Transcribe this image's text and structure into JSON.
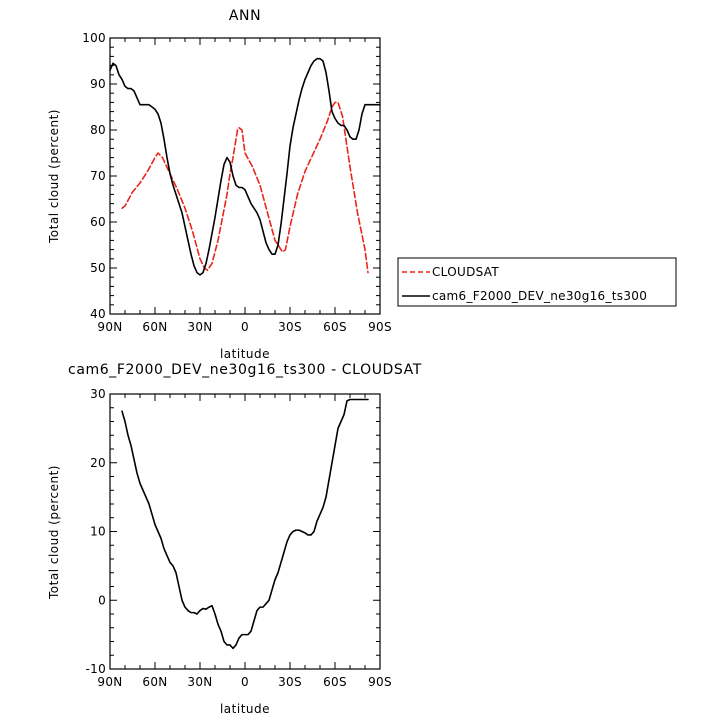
{
  "chart_data": [
    {
      "type": "line",
      "title": "ANN",
      "xlabel": "latitude",
      "ylabel": "Total cloud (percent)",
      "xlim": [
        90,
        -90
      ],
      "ylim": [
        40,
        100
      ],
      "x_ticks": [
        {
          "value": 90,
          "label": "90N"
        },
        {
          "value": 60,
          "label": "60N"
        },
        {
          "value": 30,
          "label": "30N"
        },
        {
          "value": 0,
          "label": "0"
        },
        {
          "value": -30,
          "label": "30S"
        },
        {
          "value": -60,
          "label": "60S"
        },
        {
          "value": -90,
          "label": "90S"
        }
      ],
      "y_ticks": [
        40,
        50,
        60,
        70,
        80,
        90,
        100
      ],
      "legend": {
        "placement": "right-outside"
      },
      "series": [
        {
          "name": "CLOUDSAT",
          "color": "#e8261c",
          "dash": "dashed",
          "x": [
            82,
            80,
            75,
            70,
            65,
            60,
            58,
            55,
            50,
            45,
            40,
            35,
            30,
            27,
            25,
            22,
            18,
            15,
            12,
            10,
            8,
            6,
            5,
            4,
            2,
            0,
            -5,
            -10,
            -15,
            -20,
            -25,
            -27,
            -30,
            -35,
            -40,
            -45,
            -50,
            -55,
            -58,
            -60,
            -62,
            -65,
            -70,
            -75,
            -80,
            -82
          ],
          "y": [
            63,
            63.5,
            66.5,
            68.5,
            71,
            74,
            75,
            74,
            70.5,
            67,
            63,
            58,
            52,
            50,
            49.5,
            51,
            56,
            61,
            66,
            70.5,
            74,
            78,
            80,
            80.5,
            80,
            75,
            72,
            68,
            62,
            56,
            53.5,
            54,
            59,
            66,
            71,
            74.5,
            78,
            82,
            85,
            86,
            86,
            83,
            72,
            62,
            54,
            49
          ]
        },
        {
          "name": "cam6_F2000_DEV_ne30g16_ts300",
          "color": "#000000",
          "dash": "solid",
          "x": [
            90,
            88,
            86,
            84,
            82,
            80,
            78,
            76,
            74,
            72,
            70,
            68,
            66,
            64,
            62,
            60,
            58,
            56,
            54,
            52,
            50,
            48,
            46,
            44,
            42,
            40,
            38,
            36,
            34,
            32,
            30,
            28,
            26,
            24,
            22,
            20,
            18,
            16,
            14,
            12,
            10,
            8,
            6,
            4,
            2,
            0,
            -2,
            -4,
            -6,
            -8,
            -10,
            -12,
            -14,
            -16,
            -18,
            -20,
            -22,
            -24,
            -26,
            -28,
            -30,
            -32,
            -34,
            -36,
            -38,
            -40,
            -42,
            -44,
            -46,
            -48,
            -50,
            -52,
            -54,
            -56,
            -58,
            -60,
            -62,
            -64,
            -66,
            -68,
            -70,
            -72,
            -74,
            -76,
            -78,
            -80,
            -82,
            -84,
            -86,
            -88,
            -90
          ],
          "y": [
            93,
            94.5,
            94,
            92,
            91,
            89.5,
            89,
            89,
            88.5,
            87,
            85.5,
            85.5,
            85.5,
            85.5,
            85,
            84.5,
            83.5,
            81.5,
            78,
            74,
            70.5,
            68,
            66,
            64,
            62,
            59,
            56,
            53,
            50.5,
            49,
            48.5,
            49,
            51,
            54,
            57.5,
            61,
            65,
            69,
            72.5,
            74,
            73,
            70,
            68,
            67.5,
            67.5,
            67,
            65.5,
            64,
            63,
            62,
            60.5,
            58,
            55.5,
            54,
            53,
            53,
            55,
            59.5,
            65,
            70.5,
            76.5,
            80.5,
            83.5,
            86.5,
            89,
            91,
            92.5,
            94,
            95,
            95.5,
            95.5,
            95,
            92.5,
            88.5,
            84,
            82.5,
            81.5,
            81,
            81,
            80,
            78.5,
            78,
            78,
            80,
            83.5,
            85.5,
            85.5,
            85.5,
            85.5,
            85.5,
            85.5
          ]
        }
      ]
    },
    {
      "type": "line",
      "title": "cam6_F2000_DEV_ne30g16_ts300 - CLOUDSAT",
      "xlabel": "latitude",
      "ylabel": "Total cloud (percent)",
      "xlim": [
        90,
        -90
      ],
      "ylim": [
        -10,
        30
      ],
      "x_ticks": [
        {
          "value": 90,
          "label": "90N"
        },
        {
          "value": 60,
          "label": "60N"
        },
        {
          "value": 30,
          "label": "30N"
        },
        {
          "value": 0,
          "label": "0"
        },
        {
          "value": -30,
          "label": "30S"
        },
        {
          "value": -60,
          "label": "60S"
        },
        {
          "value": -90,
          "label": "90S"
        }
      ],
      "y_ticks": [
        -10,
        0,
        10,
        20,
        30
      ],
      "series": [
        {
          "color": "#000000",
          "dash": "solid",
          "x": [
            82,
            80,
            78,
            76,
            74,
            72,
            70,
            68,
            66,
            64,
            62,
            60,
            58,
            56,
            54,
            52,
            50,
            48,
            46,
            44,
            42,
            40,
            38,
            36,
            34,
            32,
            30,
            28,
            26,
            24,
            22,
            20,
            18,
            16,
            14,
            12,
            10,
            8,
            6,
            4,
            2,
            0,
            -2,
            -4,
            -6,
            -8,
            -10,
            -12,
            -14,
            -16,
            -18,
            -20,
            -22,
            -24,
            -26,
            -28,
            -30,
            -32,
            -34,
            -36,
            -38,
            -40,
            -42,
            -44,
            -46,
            -48,
            -50,
            -52,
            -54,
            -56,
            -58,
            -60,
            -62,
            -64,
            -66,
            -68,
            -70,
            -72,
            -74,
            -76,
            -78,
            -80,
            -82
          ],
          "y": [
            27.5,
            26,
            24,
            22.5,
            20.5,
            18.5,
            17,
            16,
            15,
            14,
            12.5,
            11,
            10,
            9,
            7.5,
            6.5,
            5.5,
            5,
            4,
            2,
            0,
            -1,
            -1.5,
            -1.8,
            -1.8,
            -2,
            -1.5,
            -1.2,
            -1.3,
            -1,
            -0.8,
            -2,
            -3.5,
            -4.5,
            -6,
            -6.5,
            -6.5,
            -7,
            -6.5,
            -5.5,
            -5,
            -5,
            -5,
            -4.5,
            -3,
            -1.5,
            -1,
            -1,
            -0.5,
            0,
            1.5,
            3,
            4,
            5.5,
            7,
            8.5,
            9.5,
            10,
            10.2,
            10.2,
            10,
            9.8,
            9.5,
            9.5,
            10,
            11.5,
            12.5,
            13.5,
            15,
            17.5,
            20,
            22.5,
            25,
            26,
            27,
            29,
            29.2,
            29.2,
            29.2,
            29.2,
            29.2,
            29.2,
            29.2
          ]
        }
      ]
    }
  ]
}
